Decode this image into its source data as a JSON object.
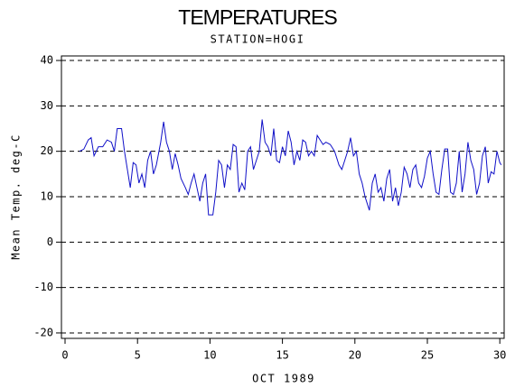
{
  "chart_data": {
    "type": "line",
    "title": "TEMPERATURES",
    "subtitle": "STATION=HOGI",
    "x_label": "OCT 1989",
    "y_label": "Mean Temp. deg-C",
    "xlim": [
      -0.25,
      30.3
    ],
    "ylim": [
      -21.2,
      41
    ],
    "xticks": [
      0,
      5,
      10,
      15,
      20,
      25,
      30
    ],
    "yticks": [
      -20,
      -10,
      0,
      10,
      20,
      30,
      40
    ],
    "grid": true,
    "series": [
      {
        "name": "Mean Temp",
        "color": "#1010c8",
        "x": [
          1.0,
          1.3,
          1.6,
          1.8,
          2.0,
          2.3,
          2.6,
          2.9,
          3.2,
          3.4,
          3.6,
          3.9,
          4.1,
          4.3,
          4.5,
          4.7,
          4.9,
          5.1,
          5.3,
          5.5,
          5.7,
          5.9,
          6.1,
          6.3,
          6.6,
          6.8,
          7.0,
          7.2,
          7.4,
          7.6,
          7.8,
          8.0,
          8.3,
          8.5,
          8.7,
          8.9,
          9.1,
          9.3,
          9.5,
          9.7,
          9.9,
          10.2,
          10.4,
          10.6,
          10.8,
          11.0,
          11.2,
          11.4,
          11.6,
          11.8,
          12.0,
          12.2,
          12.4,
          12.6,
          12.8,
          13.0,
          13.2,
          13.4,
          13.6,
          13.8,
          14.0,
          14.2,
          14.4,
          14.6,
          14.8,
          15.0,
          15.2,
          15.4,
          15.6,
          15.8,
          16.0,
          16.2,
          16.4,
          16.6,
          16.8,
          17.0,
          17.2,
          17.4,
          17.6,
          17.8,
          18.0,
          18.3,
          18.6,
          18.9,
          19.1,
          19.3,
          19.5,
          19.7,
          19.9,
          20.1,
          20.3,
          20.5,
          20.7,
          20.9,
          21.0,
          21.2,
          21.4,
          21.6,
          21.8,
          22.0,
          22.2,
          22.4,
          22.6,
          22.8,
          23.0,
          23.2,
          23.4,
          23.6,
          23.8,
          24.0,
          24.2,
          24.4,
          24.6,
          24.8,
          25.0,
          25.2,
          25.4,
          25.6,
          25.8,
          26.0,
          26.2,
          26.4,
          26.6,
          26.8,
          27.0,
          27.2,
          27.4,
          27.6,
          27.8,
          28.0,
          28.2,
          28.4,
          28.6,
          28.8,
          29.0,
          29.2,
          29.4,
          29.6,
          29.8,
          30.0,
          30.1
        ],
        "values": [
          20,
          20.5,
          22.5,
          23,
          19,
          21,
          21,
          22.5,
          22,
          20,
          25,
          25,
          20,
          16,
          12,
          17.5,
          17,
          13,
          15,
          12,
          18,
          20,
          15,
          17,
          22,
          26.5,
          22,
          20,
          16,
          19.5,
          17,
          14,
          12,
          10.5,
          13,
          15,
          12,
          9,
          13,
          15,
          6,
          6,
          11,
          18,
          17,
          12,
          17,
          16,
          21.5,
          21,
          11,
          13,
          11.5,
          20,
          21,
          16,
          18,
          20,
          27,
          22,
          21,
          19,
          25,
          18,
          17.5,
          21,
          19,
          24.5,
          22,
          17,
          20,
          18,
          22.5,
          22,
          19,
          20,
          19,
          23.5,
          22.5,
          21.5,
          22,
          21.5,
          20,
          17,
          16,
          18,
          20,
          23,
          19,
          20,
          15,
          13,
          10,
          8,
          7,
          13,
          15,
          11,
          12,
          9,
          14,
          16,
          9,
          12,
          8,
          11,
          16.5,
          15,
          12,
          16,
          17,
          13,
          12,
          14.5,
          18.5,
          20,
          15,
          11,
          10.5,
          16,
          20.5,
          20.5,
          11,
          10.5,
          13,
          20,
          11,
          15,
          22,
          18,
          16,
          10.5,
          13,
          19,
          21,
          13,
          15.5,
          15,
          20,
          17.5,
          17
        ]
      }
    ]
  }
}
